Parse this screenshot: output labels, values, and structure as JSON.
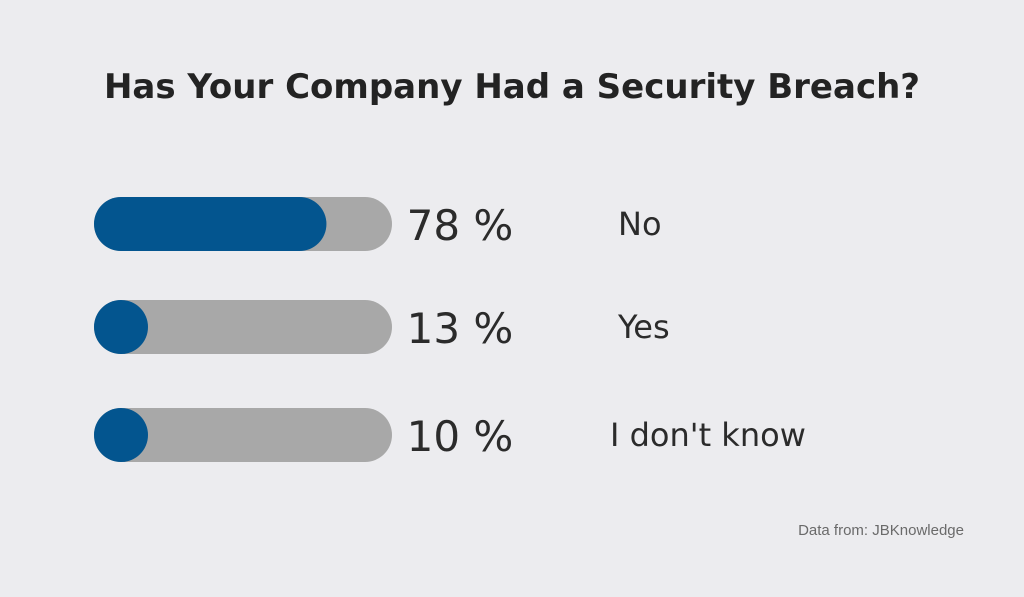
{
  "chart_data": {
    "type": "bar",
    "title": "Has Your Company Had a Security Breach?",
    "categories": [
      "No",
      "Yes",
      "I don't know"
    ],
    "values": [
      78,
      13,
      10
    ],
    "value_labels": [
      "78 %",
      "13 %",
      "10 %"
    ],
    "xlim": [
      0,
      100
    ],
    "orientation": "horizontal",
    "grid": false,
    "legend": "none",
    "source": "Data from: JBKnowledge",
    "colors": {
      "fill": "#03558f",
      "track": "#a8a8a8",
      "background": "#ececef"
    }
  }
}
